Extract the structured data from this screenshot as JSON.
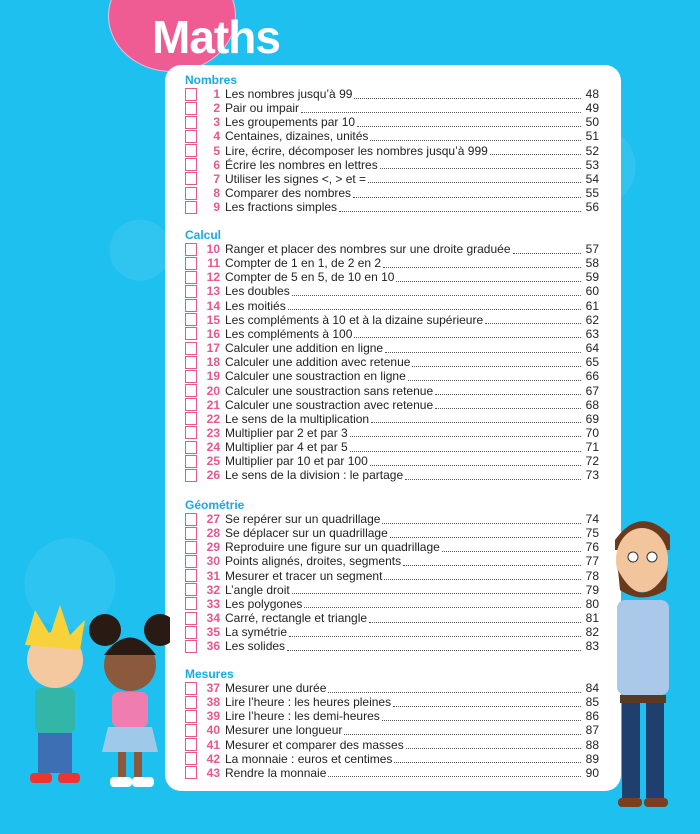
{
  "title": "Maths",
  "sections": [
    {
      "name": "Nombres",
      "items": [
        {
          "n": "1",
          "label": "Les nombres jusqu’à 99",
          "page": "48"
        },
        {
          "n": "2",
          "label": "Pair ou impair",
          "page": "49"
        },
        {
          "n": "3",
          "label": "Les groupements par 10",
          "page": "50"
        },
        {
          "n": "4",
          "label": "Centaines, dizaines, unités",
          "page": "51"
        },
        {
          "n": "5",
          "label": "Lire, écrire, décomposer les nombres jusqu’à 999",
          "page": "52"
        },
        {
          "n": "6",
          "label": "Écrire les nombres en lettres",
          "page": "53"
        },
        {
          "n": "7",
          "label": "Utiliser les signes <, > et =",
          "page": "54"
        },
        {
          "n": "8",
          "label": "Comparer des nombres",
          "page": "55"
        },
        {
          "n": "9",
          "label": "Les fractions simples",
          "page": "56"
        }
      ]
    },
    {
      "name": "Calcul",
      "items": [
        {
          "n": "10",
          "label": "Ranger et placer des nombres sur une droite graduée",
          "page": "57"
        },
        {
          "n": "11",
          "label": "Compter de 1 en 1, de 2 en 2",
          "page": "58"
        },
        {
          "n": "12",
          "label": "Compter de 5 en 5, de 10 en 10",
          "page": "59"
        },
        {
          "n": "13",
          "label": "Les doubles",
          "page": "60"
        },
        {
          "n": "14",
          "label": "Les moitiés",
          "page": "61"
        },
        {
          "n": "15",
          "label": "Les compléments à 10 et à la dizaine supérieure",
          "page": "62"
        },
        {
          "n": "16",
          "label": "Les compléments à 100",
          "page": "63"
        },
        {
          "n": "17",
          "label": "Calculer une addition en ligne",
          "page": "64"
        },
        {
          "n": "18",
          "label": "Calculer une addition avec retenue",
          "page": "65"
        },
        {
          "n": "19",
          "label": "Calculer une soustraction en ligne",
          "page": "66"
        },
        {
          "n": "20",
          "label": "Calculer une soustraction sans retenue",
          "page": "67"
        },
        {
          "n": "21",
          "label": "Calculer une soustraction avec retenue",
          "page": "68"
        },
        {
          "n": "22",
          "label": "Le sens de la multiplication",
          "page": "69"
        },
        {
          "n": "23",
          "label": "Multiplier par 2 et par 3",
          "page": "70"
        },
        {
          "n": "24",
          "label": "Multiplier par 4 et par 5",
          "page": "71"
        },
        {
          "n": "25",
          "label": "Multiplier par 10 et par 100",
          "page": "72"
        },
        {
          "n": "26",
          "label": "Le sens de la division : le partage",
          "page": "73"
        }
      ]
    },
    {
      "name": "Géométrie",
      "items": [
        {
          "n": "27",
          "label": "Se repérer sur un quadrillage",
          "page": "74"
        },
        {
          "n": "28",
          "label": "Se déplacer sur un quadrillage",
          "page": "75"
        },
        {
          "n": "29",
          "label": "Reproduire une figure sur un quadrillage",
          "page": "76"
        },
        {
          "n": "30",
          "label": "Points alignés, droites, segments",
          "page": "77"
        },
        {
          "n": "31",
          "label": "Mesurer et tracer un segment",
          "page": "78"
        },
        {
          "n": "32",
          "label": "L’angle droit",
          "page": "79"
        },
        {
          "n": "33",
          "label": "Les polygones",
          "page": "80"
        },
        {
          "n": "34",
          "label": "Carré, rectangle et triangle",
          "page": "81"
        },
        {
          "n": "35",
          "label": "La symétrie",
          "page": "82"
        },
        {
          "n": "36",
          "label": "Les solides",
          "page": "83"
        }
      ]
    },
    {
      "name": "Mesures",
      "items": [
        {
          "n": "37",
          "label": "Mesurer une durée",
          "page": "84"
        },
        {
          "n": "38",
          "label": "Lire l’heure : les heures pleines",
          "page": "85"
        },
        {
          "n": "39",
          "label": "Lire l’heure : les demi-heures",
          "page": "86"
        },
        {
          "n": "40",
          "label": "Mesurer une longueur",
          "page": "87"
        },
        {
          "n": "41",
          "label": "Mesurer et comparer des masses",
          "page": "88"
        },
        {
          "n": "42",
          "label": "La monnaie : euros et centimes",
          "page": "89"
        },
        {
          "n": "43",
          "label": "Rendre la monnaie",
          "page": "90"
        }
      ]
    }
  ],
  "colors": {
    "background": "#1ec0f0",
    "accent": "#e8568e",
    "section": "#1aa9e4"
  }
}
